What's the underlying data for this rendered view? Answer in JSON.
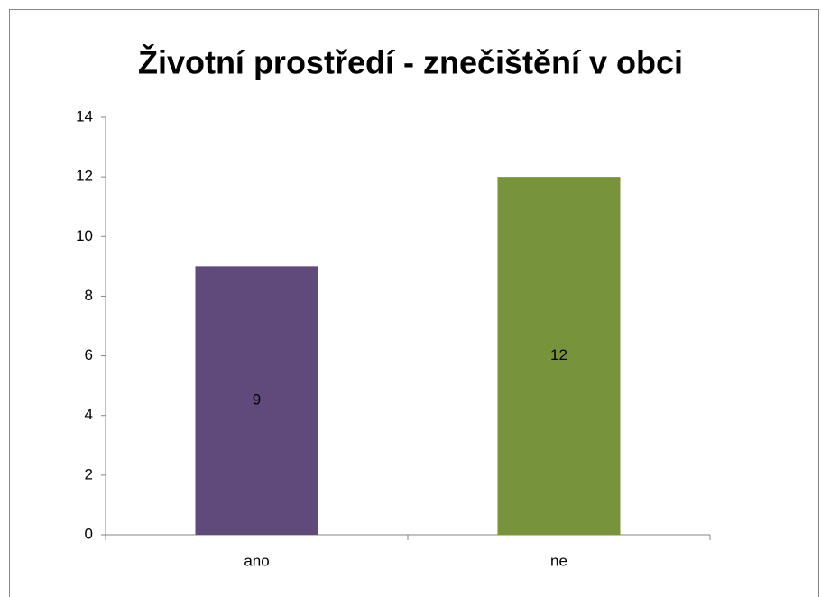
{
  "chart_data": {
    "type": "bar",
    "title": "Životní prostředí - znečištění v obci",
    "categories": [
      "ano",
      "ne"
    ],
    "values": [
      9,
      12
    ],
    "colors": [
      "#604a7b",
      "#77933c"
    ],
    "ylim": [
      0,
      14
    ],
    "yticks": [
      0,
      2,
      4,
      6,
      8,
      10,
      12,
      14
    ],
    "grid": false,
    "data_labels": true
  }
}
